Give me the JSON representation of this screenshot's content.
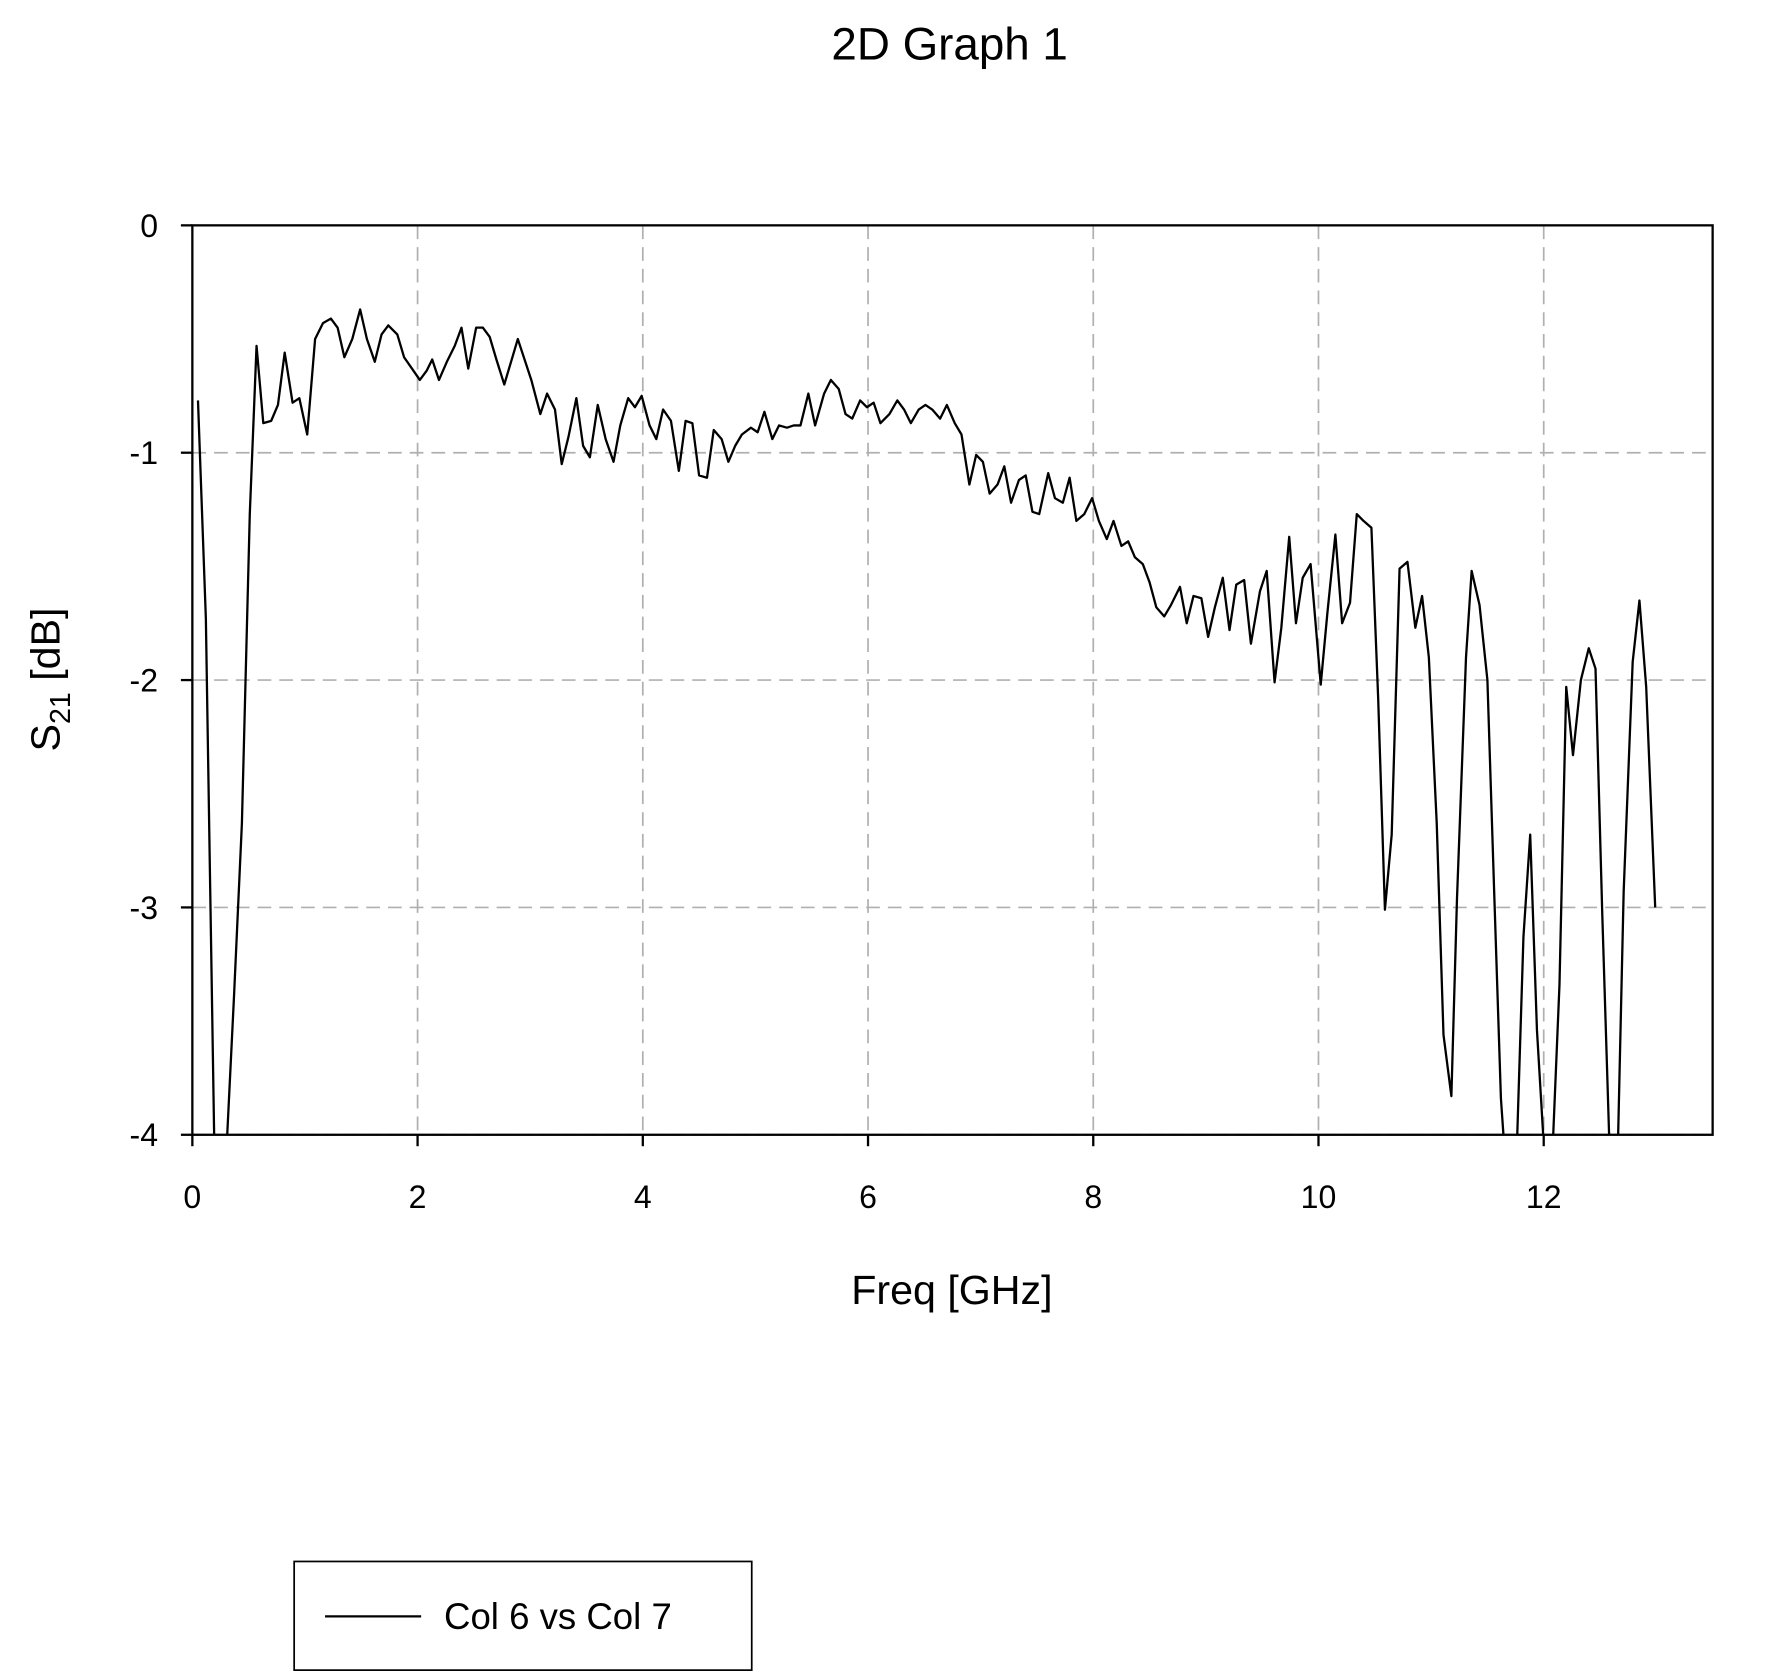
{
  "chart_data": {
    "type": "line",
    "title": "2D Graph 1",
    "x_label": "Freq [GHz]",
    "y_label": [
      "S",
      "21",
      "[dB]"
    ],
    "xlim": [
      0,
      13.5
    ],
    "ylim": [
      -4,
      0
    ],
    "xticks": [
      0,
      2,
      4,
      6,
      8,
      10,
      12
    ],
    "yticks": [
      0,
      -1,
      -2,
      -3,
      -4
    ],
    "grid": true,
    "legend": "bottom-left",
    "series": [
      {
        "name": "Col 6 vs Col 7",
        "color": "#000000",
        "x": [
          0.05,
          0.12,
          0.2,
          0.28,
          0.37,
          0.44,
          0.51,
          0.57,
          0.63,
          0.7,
          0.76,
          0.82,
          0.89,
          0.95,
          1.02,
          1.09,
          1.16,
          1.23,
          1.29,
          1.35,
          1.42,
          1.49,
          1.55,
          1.62,
          1.68,
          1.74,
          1.82,
          1.88,
          1.95,
          2.02,
          2.08,
          2.13,
          2.19,
          2.26,
          2.33,
          2.39,
          2.45,
          2.52,
          2.58,
          2.64,
          2.7,
          2.77,
          2.83,
          2.89,
          2.95,
          3.01,
          3.09,
          3.15,
          3.22,
          3.28,
          3.34,
          3.41,
          3.47,
          3.53,
          3.6,
          3.67,
          3.74,
          3.8,
          3.87,
          3.93,
          3.99,
          4.06,
          4.12,
          4.18,
          4.25,
          4.32,
          4.38,
          4.44,
          4.5,
          4.57,
          4.63,
          4.7,
          4.76,
          4.82,
          4.88,
          4.96,
          5.02,
          5.08,
          5.15,
          5.21,
          5.28,
          5.34,
          5.4,
          5.47,
          5.53,
          5.61,
          5.67,
          5.74,
          5.8,
          5.86,
          5.93,
          5.99,
          6.05,
          6.11,
          6.19,
          6.26,
          6.32,
          6.38,
          6.45,
          6.51,
          6.57,
          6.64,
          6.7,
          6.77,
          6.83,
          6.9,
          6.96,
          7.02,
          7.08,
          7.15,
          7.21,
          7.27,
          7.34,
          7.4,
          7.46,
          7.52,
          7.6,
          7.66,
          7.73,
          7.79,
          7.85,
          7.92,
          7.99,
          8.05,
          8.12,
          8.18,
          8.25,
          8.31,
          8.37,
          8.44,
          8.5,
          8.56,
          8.63,
          8.69,
          8.77,
          8.83,
          8.89,
          8.96,
          9.02,
          9.08,
          9.15,
          9.21,
          9.27,
          9.34,
          9.4,
          9.48,
          9.54,
          9.61,
          9.67,
          9.74,
          9.8,
          9.86,
          9.93,
          10.02,
          10.08,
          10.15,
          10.21,
          10.28,
          10.34,
          10.4,
          10.47,
          10.53,
          10.59,
          10.65,
          10.72,
          10.79,
          10.86,
          10.92,
          10.98,
          11.05,
          11.11,
          11.18,
          11.23,
          11.31,
          11.36,
          11.43,
          11.5,
          11.56,
          11.62,
          11.69,
          11.75,
          11.82,
          11.88,
          11.94,
          12.0,
          12.06,
          12.14,
          12.2,
          12.26,
          12.33,
          12.4,
          12.46,
          12.52,
          12.58,
          12.65,
          12.71,
          12.79,
          12.85,
          12.91,
          12.99
        ],
        "values": [
          -0.77,
          -1.73,
          -4.2,
          -4.3,
          -3.39,
          -2.63,
          -1.27,
          -0.53,
          -0.87,
          -0.86,
          -0.79,
          -0.56,
          -0.78,
          -0.76,
          -0.92,
          -0.5,
          -0.43,
          -0.41,
          -0.45,
          -0.58,
          -0.5,
          -0.37,
          -0.5,
          -0.6,
          -0.48,
          -0.44,
          -0.48,
          -0.58,
          -0.63,
          -0.68,
          -0.64,
          -0.59,
          -0.68,
          -0.6,
          -0.53,
          -0.45,
          -0.63,
          -0.45,
          -0.45,
          -0.49,
          -0.59,
          -0.7,
          -0.6,
          -0.5,
          -0.59,
          -0.68,
          -0.83,
          -0.74,
          -0.81,
          -1.05,
          -0.93,
          -0.76,
          -0.97,
          -1.02,
          -0.79,
          -0.94,
          -1.04,
          -0.88,
          -0.76,
          -0.8,
          -0.75,
          -0.88,
          -0.94,
          -0.81,
          -0.86,
          -1.08,
          -0.86,
          -0.87,
          -1.1,
          -1.11,
          -0.9,
          -0.94,
          -1.04,
          -0.97,
          -0.92,
          -0.89,
          -0.91,
          -0.82,
          -0.94,
          -0.88,
          -0.89,
          -0.88,
          -0.88,
          -0.74,
          -0.88,
          -0.74,
          -0.68,
          -0.72,
          -0.83,
          -0.85,
          -0.77,
          -0.8,
          -0.78,
          -0.87,
          -0.83,
          -0.77,
          -0.81,
          -0.87,
          -0.81,
          -0.79,
          -0.81,
          -0.85,
          -0.79,
          -0.87,
          -0.92,
          -1.14,
          -1.01,
          -1.04,
          -1.18,
          -1.14,
          -1.06,
          -1.22,
          -1.12,
          -1.1,
          -1.26,
          -1.27,
          -1.09,
          -1.2,
          -1.22,
          -1.11,
          -1.3,
          -1.27,
          -1.2,
          -1.3,
          -1.38,
          -1.3,
          -1.41,
          -1.39,
          -1.46,
          -1.49,
          -1.57,
          -1.68,
          -1.72,
          -1.67,
          -1.59,
          -1.75,
          -1.63,
          -1.64,
          -1.81,
          -1.68,
          -1.55,
          -1.78,
          -1.58,
          -1.56,
          -1.84,
          -1.61,
          -1.52,
          -2.01,
          -1.77,
          -1.37,
          -1.75,
          -1.55,
          -1.49,
          -2.02,
          -1.7,
          -1.36,
          -1.75,
          -1.66,
          -1.27,
          -1.3,
          -1.33,
          -2.08,
          -3.01,
          -2.68,
          -1.51,
          -1.48,
          -1.77,
          -1.63,
          -1.9,
          -2.63,
          -3.56,
          -3.83,
          -2.96,
          -1.9,
          -1.52,
          -1.67,
          -2.0,
          -2.93,
          -3.84,
          -4.34,
          -4.24,
          -3.13,
          -2.68,
          -3.54,
          -4.04,
          -4.29,
          -3.34,
          -2.03,
          -2.33,
          -2.0,
          -1.86,
          -1.95,
          -3.03,
          -3.99,
          -4.24,
          -2.93,
          -1.92,
          -1.65,
          -2.03,
          -3.0
        ]
      }
    ]
  }
}
